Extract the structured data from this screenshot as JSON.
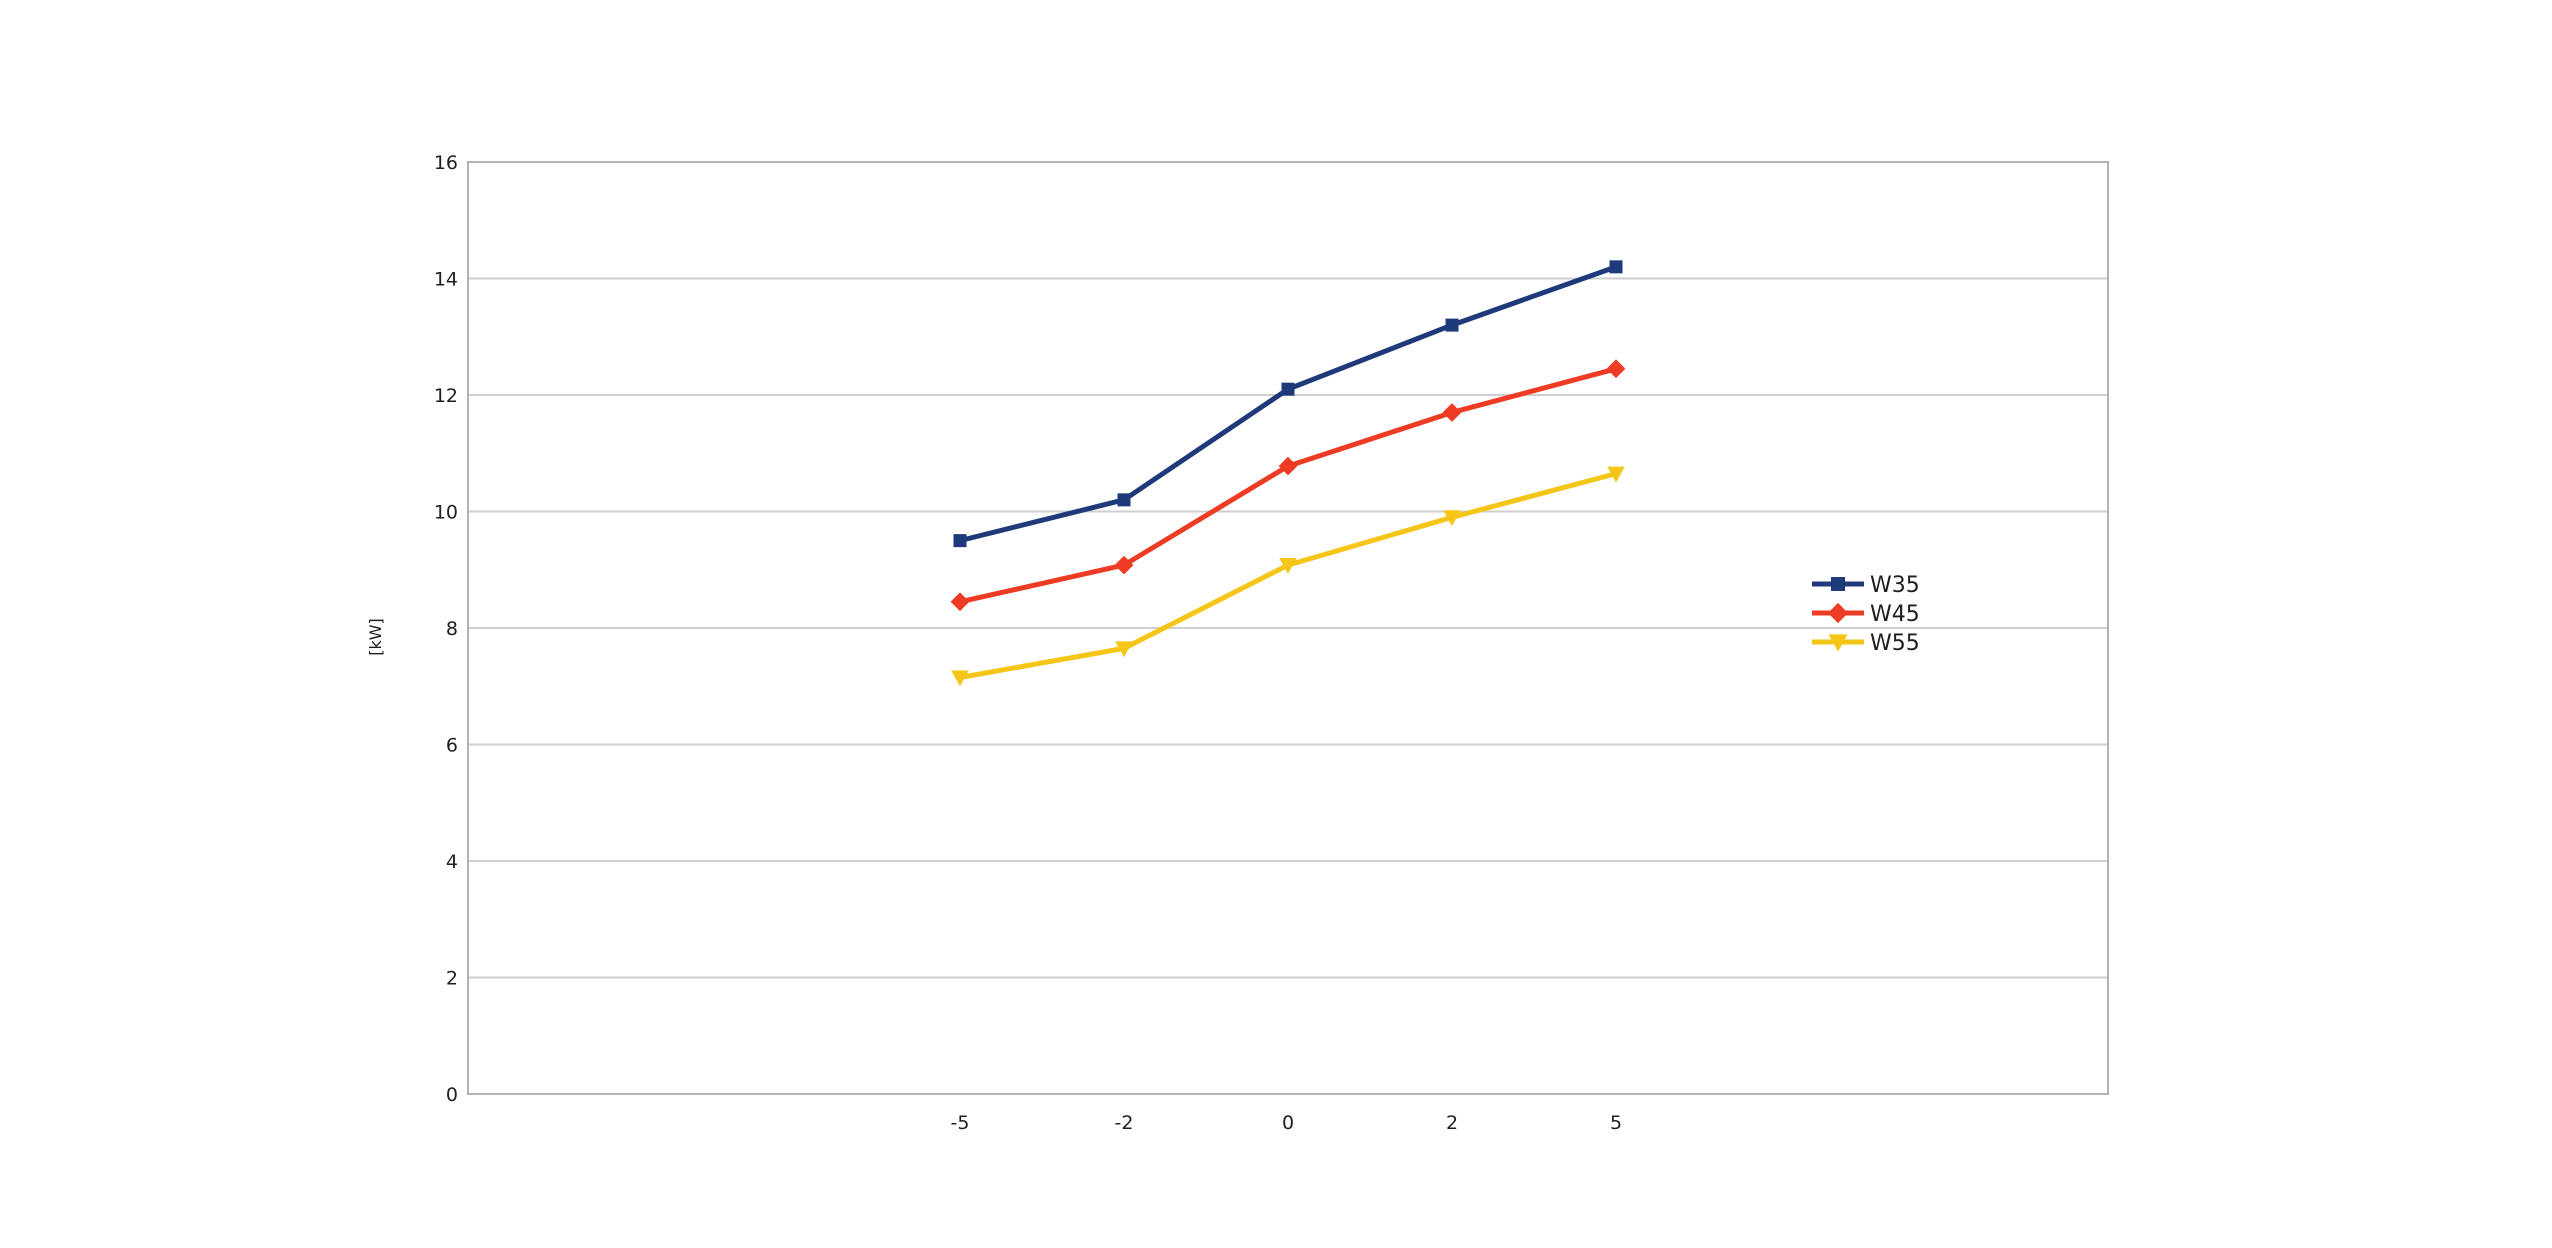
{
  "chart_data": {
    "type": "line",
    "categories": [
      "-5",
      "-2",
      "0",
      "2",
      "5"
    ],
    "ylabel": "[kW]",
    "xlabel": "",
    "ylim": [
      0,
      16
    ],
    "ytick_step": 2,
    "grid": true,
    "legend_position": "right",
    "series": [
      {
        "name": "W35",
        "values": [
          9.5,
          10.2,
          12.1,
          13.2,
          14.2
        ],
        "color": "#1f3a7a",
        "marker": "square"
      },
      {
        "name": "W45",
        "values": [
          8.45,
          9.08,
          10.78,
          11.7,
          12.45
        ],
        "color": "#ee3b24",
        "marker": "diamond"
      },
      {
        "name": "W55",
        "values": [
          7.15,
          7.65,
          9.08,
          9.9,
          10.65
        ],
        "color": "#f5c518",
        "marker": "triangle-down"
      }
    ]
  }
}
